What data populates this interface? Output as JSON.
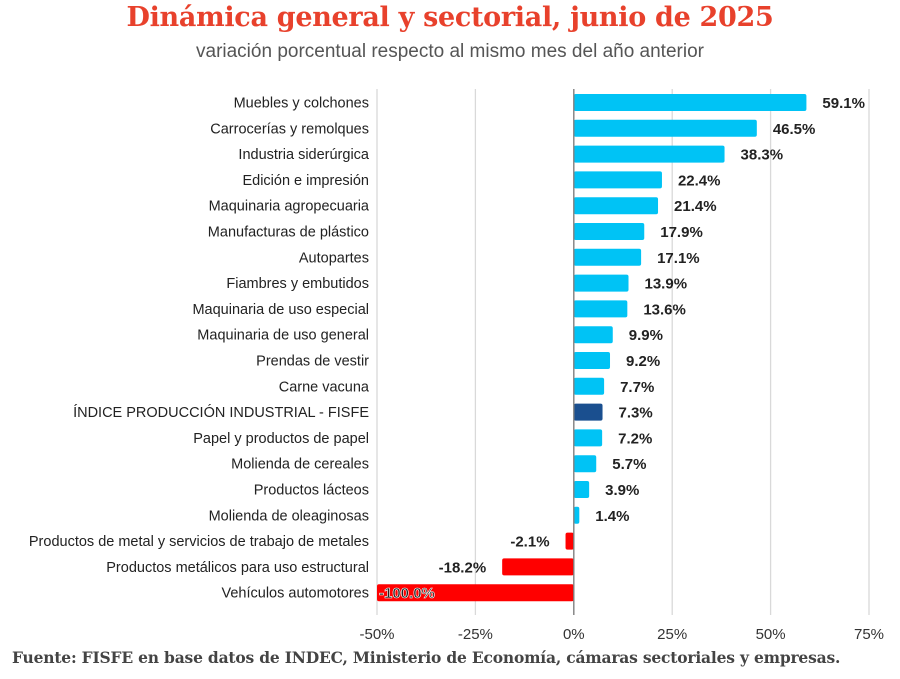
{
  "header": {
    "title": "Dinámica general y sectorial, junio de 2025",
    "subtitle": "variación porcentual respecto al mismo mes del  año anterior"
  },
  "footer": {
    "source": "Fuente: FISFE en base datos de INDEC, Ministerio de Economía, cámaras sectoriales y empresas."
  },
  "colors": {
    "title": "#e8412c",
    "positive": "#00c3f5",
    "highlight": "#1a4f8f",
    "negative": "#ff0000",
    "grid": "#d9d9d9",
    "axis": "#7f7f7f"
  },
  "chart_data": {
    "type": "bar",
    "orientation": "horizontal",
    "title": "Dinámica general y sectorial, junio de 2025",
    "subtitle": "variación porcentual respecto al mismo mes del  año anterior",
    "xlabel": "",
    "ylabel": "",
    "xlim": [
      -50,
      75
    ],
    "xticks": [
      -50,
      -25,
      0,
      25,
      50,
      75
    ],
    "xtick_labels": [
      "-50%",
      "-25%",
      "0%",
      "25%",
      "50%",
      "75%"
    ],
    "grid": "vertical",
    "highlight_category": "ÍNDICE PRODUCCIÓN INDUSTRIAL - FISFE",
    "categories": [
      "Muebles y colchones",
      "Carrocerías y remolques",
      "Industria siderúrgica",
      "Edición e impresión",
      "Maquinaria agropecuaria",
      "Manufacturas de plástico",
      "Autopartes",
      "Fiambres y embutidos",
      "Maquinaria de uso especial",
      "Maquinaria de uso general",
      "Prendas de vestir",
      "Carne vacuna",
      "ÍNDICE PRODUCCIÓN INDUSTRIAL - FISFE",
      "Papel y productos de papel",
      "Molienda de cereales",
      "Productos lácteos",
      "Molienda de oleaginosas",
      "Productos de metal y servicios de trabajo de metales",
      "Productos metálicos para uso estructural",
      "Vehículos automotores"
    ],
    "values": [
      59.1,
      46.5,
      38.3,
      22.4,
      21.4,
      17.9,
      17.1,
      13.9,
      13.6,
      9.9,
      9.2,
      7.7,
      7.3,
      7.2,
      5.7,
      3.9,
      1.4,
      -2.1,
      -18.2,
      -100.0
    ],
    "value_labels": [
      "59.1%",
      "46.5%",
      "38.3%",
      "22.4%",
      "21.4%",
      "17.9%",
      "17.1%",
      "13.9%",
      "13.6%",
      "9.9%",
      "9.2%",
      "7.7%",
      "7.3%",
      "7.2%",
      "5.7%",
      "3.9%",
      "1.4%",
      "-2.1%",
      "-18.2%",
      "-100.0%"
    ]
  }
}
